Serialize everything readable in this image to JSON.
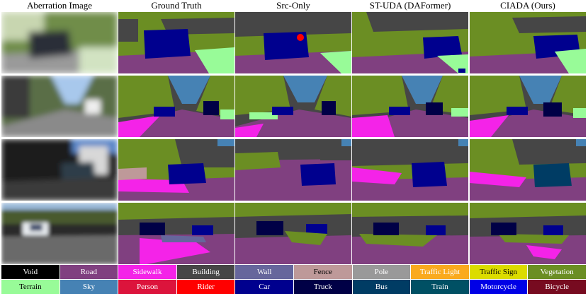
{
  "columns": [
    {
      "label": "Aberration Image"
    },
    {
      "label": "Ground Truth"
    },
    {
      "label": "Src-Only"
    },
    {
      "label": "ST-UDA (DAFormer)"
    },
    {
      "label": "CIADA (Ours)"
    }
  ],
  "legend": [
    {
      "label": "Void",
      "color": "#000000",
      "text_color": "#ffffff"
    },
    {
      "label": "Road",
      "color": "#804080",
      "text_color": "#ffffff"
    },
    {
      "label": "Sidewalk",
      "color": "#f423e8",
      "text_color": "#ffffff"
    },
    {
      "label": "Building",
      "color": "#464646",
      "text_color": "#ffffff"
    },
    {
      "label": "Wall",
      "color": "#66669c",
      "text_color": "#ffffff"
    },
    {
      "label": "Fence",
      "color": "#be9999",
      "text_color": "#000000"
    },
    {
      "label": "Pole",
      "color": "#999999",
      "text_color": "#ffffff"
    },
    {
      "label": "Traffic Light",
      "color": "#faaa1e",
      "text_color": "#ffffff"
    },
    {
      "label": "Traffic Sign",
      "color": "#dcdc00",
      "text_color": "#000000"
    },
    {
      "label": "Vegetation",
      "color": "#6b8e23",
      "text_color": "#ffffff"
    },
    {
      "label": "Terrain",
      "color": "#98fb98",
      "text_color": "#000000"
    },
    {
      "label": "Sky",
      "color": "#4682b4",
      "text_color": "#ffffff"
    },
    {
      "label": "Person",
      "color": "#dc143c",
      "text_color": "#ffffff"
    },
    {
      "label": "Rider",
      "color": "#ff0000",
      "text_color": "#ffffff"
    },
    {
      "label": "Car",
      "color": "#00008e",
      "text_color": "#ffffff"
    },
    {
      "label": "Truck",
      "color": "#000046",
      "text_color": "#ffffff"
    },
    {
      "label": "Bus",
      "color": "#003c64",
      "text_color": "#ffffff"
    },
    {
      "label": "Train",
      "color": "#005064",
      "text_color": "#ffffff"
    },
    {
      "label": "Motorcycle",
      "color": "#0000e6",
      "text_color": "#ffffff"
    },
    {
      "label": "Bicycle",
      "color": "#770b20",
      "text_color": "#ffffff"
    }
  ]
}
